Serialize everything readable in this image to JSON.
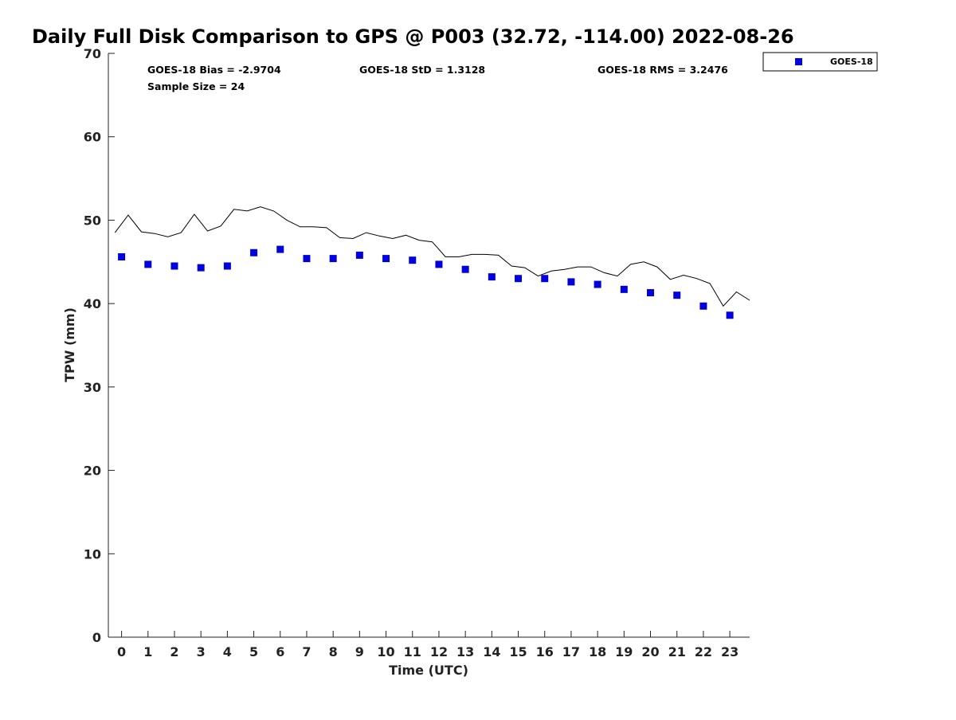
{
  "chart_data": {
    "type": "scatter",
    "title": "Daily Full Disk Comparison to GPS @ P003 (32.72, -114.00) 2022-08-26",
    "xlabel": "Time (UTC)",
    "ylabel": "TPW (mm)",
    "xlim": [
      -0.5,
      23.75
    ],
    "ylim": [
      0,
      70
    ],
    "x_ticks": [
      0,
      1,
      2,
      3,
      4,
      5,
      6,
      7,
      8,
      9,
      10,
      11,
      12,
      13,
      14,
      15,
      16,
      17,
      18,
      19,
      20,
      21,
      22,
      23
    ],
    "y_ticks": [
      0,
      10,
      20,
      30,
      40,
      50,
      60,
      70
    ],
    "grid": false,
    "legend_position": "top-right",
    "stats": {
      "bias": "GOES-18 Bias = -2.9704",
      "std": "GOES-18 StD = 1.3128",
      "rms": "GOES-18 RMS = 3.2476",
      "sample": "Sample Size = 24"
    },
    "series": [
      {
        "name": "GOES-18",
        "kind": "markers",
        "color": "#0000dd",
        "x": [
          0,
          1,
          2,
          3,
          4,
          5,
          6,
          7,
          8,
          9,
          10,
          11,
          12,
          13,
          14,
          15,
          16,
          17,
          18,
          19,
          20,
          21,
          22,
          23
        ],
        "y": [
          45.6,
          44.7,
          44.5,
          44.3,
          44.5,
          46.1,
          46.5,
          45.4,
          45.4,
          45.8,
          45.4,
          45.2,
          44.7,
          44.1,
          43.2,
          43.0,
          43.0,
          42.6,
          42.3,
          41.7,
          41.3,
          41.0,
          39.7,
          38.6
        ]
      },
      {
        "kind": "line",
        "color": "#000000",
        "x": [
          -0.25,
          0.25,
          0.75,
          1.25,
          1.75,
          2.25,
          2.75,
          3.25,
          3.75,
          4.25,
          4.75,
          5.25,
          5.75,
          6.25,
          6.75,
          7.25,
          7.75,
          8.25,
          8.75,
          9.25,
          9.75,
          10.25,
          10.75,
          11.25,
          11.75,
          12.25,
          12.75,
          13.25,
          13.75,
          14.25,
          14.75,
          15.25,
          15.75,
          16.25,
          16.75,
          17.25,
          17.75,
          18.25,
          18.75,
          19.25,
          19.75,
          20.25,
          20.75,
          21.25,
          21.75,
          22.25,
          22.75,
          23.25,
          23.75
        ],
        "y": [
          48.5,
          50.6,
          48.6,
          48.4,
          48.0,
          48.5,
          50.7,
          48.7,
          49.3,
          51.3,
          51.1,
          51.6,
          51.1,
          50.0,
          49.2,
          49.2,
          49.1,
          47.9,
          47.8,
          48.5,
          48.1,
          47.8,
          48.2,
          47.6,
          47.4,
          45.6,
          45.6,
          45.9,
          45.9,
          45.8,
          44.5,
          44.3,
          43.3,
          43.9,
          44.1,
          44.4,
          44.4,
          43.7,
          43.3,
          44.7,
          45.0,
          44.4,
          42.9,
          43.4,
          43.0,
          42.4,
          39.7,
          41.4,
          40.4
        ]
      }
    ]
  }
}
